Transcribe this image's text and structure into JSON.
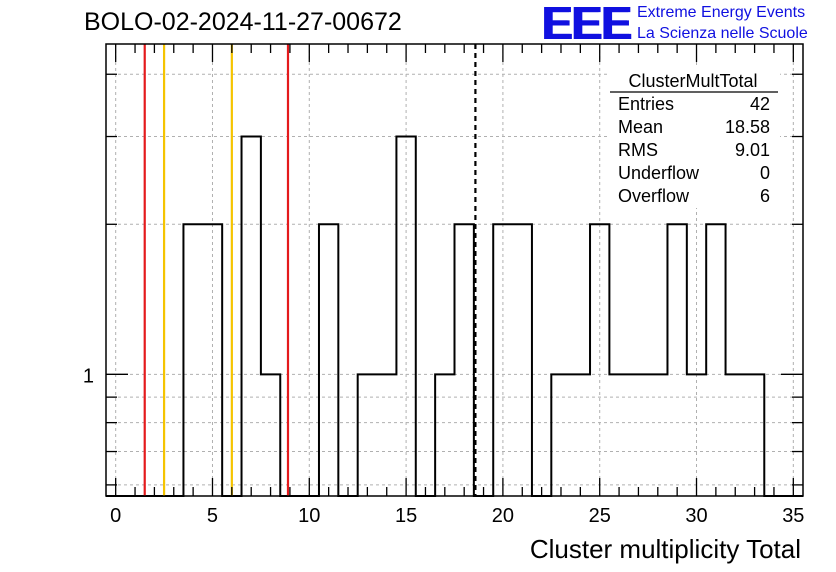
{
  "header": {
    "run_title": "BOLO-02-2024-11-27-00672",
    "logo_text": "EEE",
    "logo_line1": "Extreme Energy Events",
    "logo_line2": "La Scienza nelle Scuole"
  },
  "stats_box": {
    "title": "ClusterMultTotal",
    "rows": [
      {
        "label": "Entries",
        "value": "42"
      },
      {
        "label": "Mean",
        "value": "18.58"
      },
      {
        "label": "RMS",
        "value": "9.01"
      },
      {
        "label": "Underflow",
        "value": "0"
      },
      {
        "label": "Overflow",
        "value": "6"
      }
    ]
  },
  "chart_data": {
    "type": "histogram",
    "title": "",
    "xlabel": "Cluster multiplicity Total",
    "ylabel": "",
    "xlim": [
      -0.5,
      35.5
    ],
    "ylim": [
      0.57,
      4.6
    ],
    "yscale": "log",
    "grid": true,
    "x_ticks": [
      0,
      5,
      10,
      15,
      20,
      25,
      30,
      35
    ],
    "y_ticks": [
      1
    ],
    "bin_width": 1,
    "bins": [
      {
        "x0": -0.5,
        "count": 0
      },
      {
        "x0": 0.5,
        "count": 0
      },
      {
        "x0": 1.5,
        "count": 0
      },
      {
        "x0": 2.5,
        "count": 0
      },
      {
        "x0": 3.5,
        "count": 2
      },
      {
        "x0": 4.5,
        "count": 2
      },
      {
        "x0": 5.5,
        "count": 0
      },
      {
        "x0": 6.5,
        "count": 3
      },
      {
        "x0": 7.5,
        "count": 1
      },
      {
        "x0": 8.5,
        "count": 0
      },
      {
        "x0": 9.5,
        "count": 0
      },
      {
        "x0": 10.5,
        "count": 2
      },
      {
        "x0": 11.5,
        "count": 0
      },
      {
        "x0": 12.5,
        "count": 1
      },
      {
        "x0": 13.5,
        "count": 1
      },
      {
        "x0": 14.5,
        "count": 3
      },
      {
        "x0": 15.5,
        "count": 0
      },
      {
        "x0": 16.5,
        "count": 1
      },
      {
        "x0": 17.5,
        "count": 2
      },
      {
        "x0": 18.5,
        "count": 0
      },
      {
        "x0": 19.5,
        "count": 2
      },
      {
        "x0": 20.5,
        "count": 2
      },
      {
        "x0": 21.5,
        "count": 0
      },
      {
        "x0": 22.5,
        "count": 1
      },
      {
        "x0": 23.5,
        "count": 1
      },
      {
        "x0": 24.5,
        "count": 2
      },
      {
        "x0": 25.5,
        "count": 1
      },
      {
        "x0": 26.5,
        "count": 1
      },
      {
        "x0": 27.5,
        "count": 1
      },
      {
        "x0": 28.5,
        "count": 2
      },
      {
        "x0": 29.5,
        "count": 1
      },
      {
        "x0": 30.5,
        "count": 2
      },
      {
        "x0": 31.5,
        "count": 1
      },
      {
        "x0": 32.5,
        "count": 1
      },
      {
        "x0": 33.5,
        "count": 0
      },
      {
        "x0": 34.5,
        "count": 0
      }
    ],
    "vertical_lines": [
      {
        "x": 1.5,
        "color": "#e41a1c",
        "style": "solid"
      },
      {
        "x": 2.5,
        "color": "#f5c400",
        "style": "solid"
      },
      {
        "x": 6,
        "color": "#f5c400",
        "style": "solid"
      },
      {
        "x": 8.9,
        "color": "#e41a1c",
        "style": "solid"
      },
      {
        "x": 18.58,
        "color": "#000000",
        "style": "dashed"
      }
    ]
  }
}
